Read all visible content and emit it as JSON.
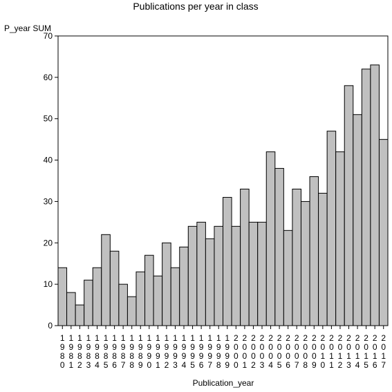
{
  "chart_data": {
    "type": "bar",
    "title": "Publications per year in class",
    "ylabel": "P_year SUM",
    "xlabel": "Publication_year",
    "ylim": [
      0,
      70
    ],
    "yticks": [
      0,
      10,
      20,
      30,
      40,
      50,
      60,
      70
    ],
    "grid": false,
    "legend": "none",
    "bar_color": "#c0c0c0",
    "categories": [
      "1980",
      "1981",
      "1982",
      "1983",
      "1984",
      "1985",
      "1986",
      "1987",
      "1988",
      "1989",
      "1990",
      "1991",
      "1992",
      "1993",
      "1994",
      "1995",
      "1996",
      "1997",
      "1998",
      "1999",
      "2000",
      "2001",
      "2002",
      "2003",
      "2004",
      "2005",
      "2006",
      "2007",
      "2008",
      "2009",
      "2010",
      "2011",
      "2012",
      "2013",
      "2014",
      "2015",
      "2016",
      "2017"
    ],
    "values": [
      14,
      8,
      5,
      11,
      14,
      22,
      18,
      10,
      7,
      13,
      17,
      12,
      20,
      14,
      19,
      24,
      25,
      21,
      24,
      31,
      24,
      33,
      25,
      25,
      42,
      38,
      23,
      33,
      30,
      36,
      32,
      47,
      42,
      58,
      51,
      62,
      63,
      45
    ]
  }
}
